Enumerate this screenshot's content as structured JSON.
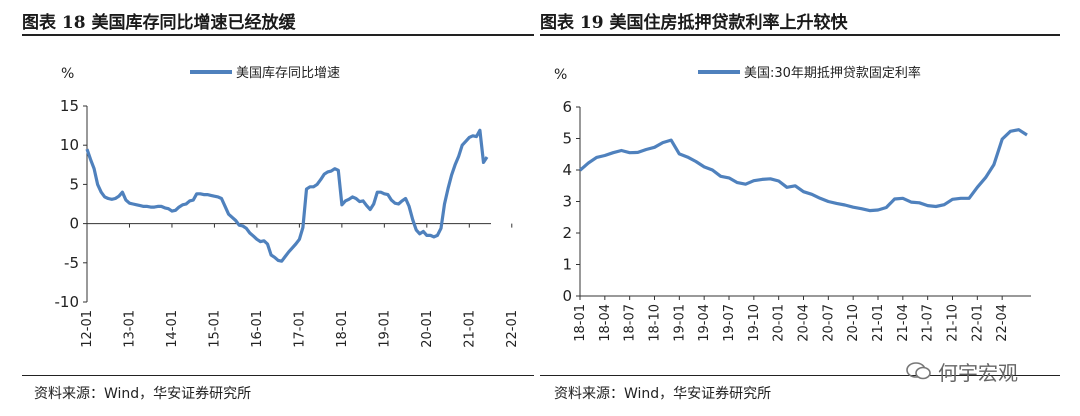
{
  "charts": {
    "left": {
      "title": "图表 18 美国库存同比增速已经放缓",
      "source": "资料来源：Wind，华安证券研究所"
    },
    "right": {
      "title": "图表 19 美国住房抵押贷款利率上升较快",
      "source": "资料来源：Wind，华安证券研究所"
    }
  },
  "watermark": "何宇宏观",
  "chart_data": [
    {
      "type": "line",
      "title": "",
      "ylabel": "%",
      "xlabel": "",
      "ylim": [
        -10,
        15
      ],
      "yticks": [
        15,
        10,
        5,
        0,
        -5,
        -10
      ],
      "xticks": [
        "12-01",
        "13-01",
        "14-01",
        "15-01",
        "16-01",
        "17-01",
        "18-01",
        "19-01",
        "20-01",
        "21-01",
        "22-01"
      ],
      "x_start": "2012-01",
      "legend": "top-center",
      "color": "#4f81bd",
      "series": [
        {
          "name": "美国库存同比增速",
          "values": [
            9.5,
            8.2,
            7.0,
            5.0,
            4.0,
            3.4,
            3.2,
            3.1,
            3.2,
            3.5,
            4.0,
            3.0,
            2.6,
            2.5,
            2.4,
            2.3,
            2.2,
            2.2,
            2.1,
            2.1,
            2.2,
            2.2,
            2.0,
            1.9,
            1.6,
            1.7,
            2.1,
            2.4,
            2.5,
            2.9,
            3.0,
            3.8,
            3.8,
            3.7,
            3.7,
            3.6,
            3.5,
            3.4,
            3.2,
            2.2,
            1.2,
            0.8,
            0.4,
            -0.2,
            -0.3,
            -0.6,
            -1.2,
            -1.6,
            -2.0,
            -2.3,
            -2.2,
            -2.6,
            -4.0,
            -4.3,
            -4.7,
            -4.8,
            -4.2,
            -3.6,
            -3.1,
            -2.6,
            -2.0,
            -0.5,
            4.4,
            4.7,
            4.7,
            5.0,
            5.6,
            6.3,
            6.6,
            6.7,
            7.0,
            6.8,
            2.4,
            2.9,
            3.1,
            3.4,
            3.2,
            2.8,
            2.9,
            2.3,
            1.8,
            2.5,
            4.0,
            4.0,
            3.8,
            3.7,
            3.0,
            2.6,
            2.5,
            2.9,
            3.2,
            2.2,
            0.5,
            -0.8,
            -1.3,
            -1.0,
            -1.5,
            -1.5,
            -1.7,
            -1.5,
            -0.6,
            2.5,
            4.5,
            6.2,
            7.5,
            8.6,
            10.0,
            10.5,
            11.0,
            11.2,
            11.1,
            11.9,
            7.8,
            8.5
          ]
        }
      ]
    },
    {
      "type": "line",
      "title": "",
      "ylabel": "%",
      "xlabel": "",
      "ylim": [
        0,
        6
      ],
      "yticks": [
        6,
        5,
        4,
        3,
        2,
        1,
        0
      ],
      "xticks": [
        "18-01",
        "18-04",
        "18-07",
        "18-10",
        "19-01",
        "19-04",
        "19-07",
        "19-10",
        "20-01",
        "20-04",
        "20-07",
        "20-10",
        "21-01",
        "21-04",
        "21-07",
        "21-10",
        "22-01",
        "22-04"
      ],
      "x_start": "2018-01",
      "legend": "top-center",
      "color": "#4f81bd",
      "series": [
        {
          "name": "美国:30年期抵押贷款固定利率",
          "values": [
            3.99,
            4.22,
            4.4,
            4.46,
            4.55,
            4.62,
            4.55,
            4.56,
            4.65,
            4.72,
            4.87,
            4.95,
            4.51,
            4.41,
            4.27,
            4.1,
            4.0,
            3.8,
            3.75,
            3.6,
            3.55,
            3.66,
            3.7,
            3.72,
            3.65,
            3.45,
            3.5,
            3.31,
            3.23,
            3.1,
            3.0,
            2.94,
            2.89,
            2.82,
            2.77,
            2.71,
            2.73,
            2.81,
            3.08,
            3.1,
            2.98,
            2.96,
            2.87,
            2.84,
            2.9,
            3.07,
            3.1,
            3.1,
            3.45,
            3.76,
            4.17,
            4.98,
            5.23,
            5.28,
            5.11
          ]
        }
      ]
    }
  ]
}
